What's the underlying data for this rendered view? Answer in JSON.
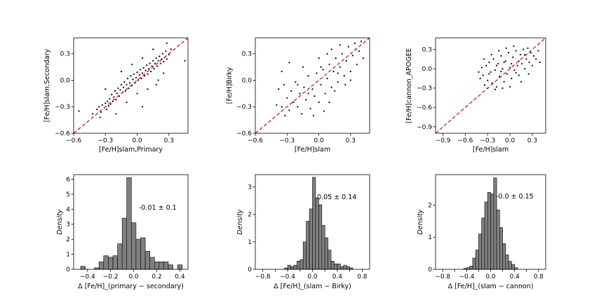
{
  "colors": {
    "scatter": "#000000",
    "diagonal": "#d62728",
    "bar_fill": "#808080",
    "bar_edge": "#000000"
  },
  "chart_data": [
    {
      "type": "scatter",
      "xlabel": "[Fe/H]slam,Primary",
      "ylabel": "[Fe/H]slam,Secondary",
      "xlim": [
        -0.6,
        0.48
      ],
      "ylim": [
        -0.6,
        0.48
      ],
      "xticks": [
        -0.6,
        -0.3,
        0.0,
        0.3
      ],
      "xtick_labels": [
        "−0.6",
        "−0.3",
        "0.0",
        "0.3"
      ],
      "yticks": [
        -0.6,
        -0.3,
        0.0,
        0.3
      ],
      "ytick_labels": [
        "−0.6",
        "−0.3",
        "0.0",
        "0.3"
      ],
      "reference_line": "y = x (dashed)",
      "points": [
        [
          -0.55,
          -0.35
        ],
        [
          -0.42,
          -0.38
        ],
        [
          -0.38,
          -0.33
        ],
        [
          -0.36,
          -0.3
        ],
        [
          -0.34,
          -0.36
        ],
        [
          -0.33,
          -0.28
        ],
        [
          -0.31,
          -0.31
        ],
        [
          -0.3,
          -0.26
        ],
        [
          -0.29,
          -0.33
        ],
        [
          -0.28,
          -0.24
        ],
        [
          -0.27,
          -0.29
        ],
        [
          -0.26,
          -0.21
        ],
        [
          -0.25,
          -0.27
        ],
        [
          -0.24,
          -0.16
        ],
        [
          -0.23,
          -0.24
        ],
        [
          -0.22,
          -0.19
        ],
        [
          -0.21,
          -0.12
        ],
        [
          -0.2,
          -0.22
        ],
        [
          -0.19,
          -0.15
        ],
        [
          -0.18,
          -0.09
        ],
        [
          -0.17,
          -0.18
        ],
        [
          -0.16,
          -0.11
        ],
        [
          -0.15,
          -0.05
        ],
        [
          -0.14,
          -0.14
        ],
        [
          -0.13,
          -0.08
        ],
        [
          -0.12,
          -0.02
        ],
        [
          -0.11,
          -0.12
        ],
        [
          -0.1,
          -0.05
        ],
        [
          -0.09,
          0.02
        ],
        [
          -0.08,
          -0.09
        ],
        [
          -0.07,
          -0.03
        ],
        [
          -0.06,
          0.05
        ],
        [
          -0.05,
          -0.06
        ],
        [
          -0.04,
          0.01
        ],
        [
          -0.03,
          0.07
        ],
        [
          -0.02,
          -0.03
        ],
        [
          -0.01,
          0.03
        ],
        [
          0.0,
          0.09
        ],
        [
          0.01,
          0.0
        ],
        [
          0.02,
          0.06
        ],
        [
          0.03,
          0.12
        ],
        [
          0.04,
          0.02
        ],
        [
          0.05,
          0.08
        ],
        [
          0.06,
          0.14
        ],
        [
          0.07,
          0.05
        ],
        [
          0.08,
          0.11
        ],
        [
          0.09,
          0.17
        ],
        [
          0.1,
          0.07
        ],
        [
          0.11,
          0.13
        ],
        [
          0.12,
          0.19
        ],
        [
          0.13,
          0.1
        ],
        [
          0.14,
          0.16
        ],
        [
          0.15,
          0.22
        ],
        [
          0.16,
          0.13
        ],
        [
          0.17,
          0.19
        ],
        [
          0.18,
          0.25
        ],
        [
          0.19,
          0.16
        ],
        [
          0.2,
          0.22
        ],
        [
          0.21,
          0.27
        ],
        [
          0.22,
          0.19
        ],
        [
          0.23,
          0.24
        ],
        [
          0.24,
          0.3
        ],
        [
          0.25,
          0.21
        ],
        [
          0.26,
          0.26
        ],
        [
          0.27,
          0.33
        ],
        [
          0.28,
          0.24
        ],
        [
          0.3,
          0.29
        ],
        [
          0.32,
          0.35
        ],
        [
          0.45,
          0.22
        ],
        [
          -0.2,
          -0.38
        ],
        [
          -0.1,
          -0.25
        ],
        [
          0.0,
          -0.15
        ],
        [
          0.05,
          -0.3
        ],
        [
          0.1,
          -0.1
        ],
        [
          0.2,
          0.0
        ],
        [
          0.25,
          0.08
        ],
        [
          -0.3,
          -0.1
        ],
        [
          -0.15,
          0.1
        ],
        [
          -0.05,
          0.18
        ],
        [
          0.05,
          0.25
        ],
        [
          0.15,
          0.35
        ],
        [
          0.28,
          0.42
        ],
        [
          -0.35,
          -0.42
        ],
        [
          0.18,
          -0.05
        ]
      ]
    },
    {
      "type": "scatter",
      "xlabel": "[Fe/H]slam",
      "ylabel": "[Fe/H]Birky",
      "xlim": [
        -0.6,
        0.48
      ],
      "ylim": [
        -0.6,
        0.48
      ],
      "xticks": [
        -0.6,
        -0.3,
        0.0,
        0.3
      ],
      "xtick_labels": [
        "−0.6",
        "−0.3",
        "0.0",
        "0.3"
      ],
      "yticks": [
        -0.6,
        -0.3,
        0.0,
        0.3
      ],
      "ytick_labels": [
        "−0.6",
        "−0.3",
        "0.0",
        "0.3"
      ],
      "reference_line": "y = x (dashed)",
      "points": [
        [
          -0.38,
          -0.1
        ],
        [
          -0.35,
          -0.3
        ],
        [
          -0.33,
          -0.05
        ],
        [
          -0.3,
          -0.2
        ],
        [
          -0.28,
          -0.34
        ],
        [
          -0.26,
          -0.12
        ],
        [
          -0.24,
          -0.25
        ],
        [
          -0.22,
          -0.02
        ],
        [
          -0.2,
          -0.3
        ],
        [
          -0.18,
          -0.15
        ],
        [
          -0.16,
          -0.38
        ],
        [
          -0.14,
          -0.08
        ],
        [
          -0.12,
          -0.22
        ],
        [
          -0.1,
          0.05
        ],
        [
          -0.08,
          -0.32
        ],
        [
          -0.06,
          -0.1
        ],
        [
          -0.04,
          -0.18
        ],
        [
          -0.02,
          0.08
        ],
        [
          0.0,
          -0.25
        ],
        [
          0.02,
          -0.05
        ],
        [
          0.04,
          0.12
        ],
        [
          0.06,
          -0.15
        ],
        [
          0.08,
          0.02
        ],
        [
          0.1,
          0.18
        ],
        [
          0.12,
          -0.08
        ],
        [
          0.14,
          0.1
        ],
        [
          0.16,
          0.25
        ],
        [
          0.18,
          -0.02
        ],
        [
          0.2,
          0.15
        ],
        [
          0.22,
          0.3
        ],
        [
          0.24,
          0.05
        ],
        [
          0.26,
          0.22
        ],
        [
          0.28,
          0.38
        ],
        [
          0.3,
          0.1
        ],
        [
          0.32,
          0.28
        ],
        [
          0.34,
          0.42
        ],
        [
          0.36,
          0.18
        ],
        [
          0.38,
          0.33
        ],
        [
          0.4,
          0.44
        ],
        [
          -0.35,
          0.1
        ],
        [
          -0.28,
          0.2
        ],
        [
          -0.05,
          -0.4
        ],
        [
          0.05,
          -0.35
        ],
        [
          0.1,
          -0.25
        ],
        [
          0.15,
          -0.12
        ],
        [
          0.25,
          -0.05
        ],
        [
          0.3,
          0.0
        ],
        [
          -0.15,
          0.15
        ],
        [
          0.0,
          0.25
        ],
        [
          0.08,
          0.3
        ],
        [
          -0.4,
          -0.28
        ],
        [
          -0.32,
          -0.4
        ],
        [
          0.12,
          0.35
        ],
        [
          0.2,
          0.4
        ],
        [
          0.42,
          0.25
        ],
        [
          -0.2,
          -0.05
        ],
        [
          -0.1,
          -0.15
        ],
        [
          0.02,
          0.15
        ],
        [
          0.18,
          0.08
        ],
        [
          0.35,
          0.35
        ]
      ]
    },
    {
      "type": "scatter",
      "xlabel": "[Fe/H]slam",
      "ylabel": "[Fe/H]cannon_APOGEE",
      "xlim": [
        -1.0,
        0.48
      ],
      "ylim": [
        -1.0,
        0.48
      ],
      "xticks": [
        -0.9,
        -0.6,
        -0.3,
        0.0,
        0.3
      ],
      "xtick_labels": [
        "−0.9",
        "−0.6",
        "−0.3",
        "0.0",
        "0.3"
      ],
      "yticks": [
        -0.9,
        -0.6,
        -0.3,
        0.0,
        0.3
      ],
      "ytick_labels": [
        "−0.9",
        "−0.6",
        "−0.3",
        "0.0",
        "0.3"
      ],
      "reference_line": "y = x (dashed)",
      "points": [
        [
          -0.4,
          -0.15
        ],
        [
          -0.38,
          0.02
        ],
        [
          -0.36,
          -0.1
        ],
        [
          -0.34,
          -0.25
        ],
        [
          -0.32,
          0.05
        ],
        [
          -0.3,
          -0.18
        ],
        [
          -0.28,
          0.1
        ],
        [
          -0.26,
          -0.05
        ],
        [
          -0.24,
          -0.22
        ],
        [
          -0.22,
          0.15
        ],
        [
          -0.2,
          -0.02
        ],
        [
          -0.18,
          -0.28
        ],
        [
          -0.16,
          0.08
        ],
        [
          -0.14,
          -0.12
        ],
        [
          -0.12,
          0.2
        ],
        [
          -0.1,
          0.0
        ],
        [
          -0.08,
          -0.2
        ],
        [
          -0.06,
          0.12
        ],
        [
          -0.04,
          -0.08
        ],
        [
          -0.02,
          0.25
        ],
        [
          0.0,
          0.02
        ],
        [
          0.02,
          -0.15
        ],
        [
          0.04,
          0.18
        ],
        [
          0.06,
          -0.02
        ],
        [
          0.08,
          0.28
        ],
        [
          0.1,
          0.05
        ],
        [
          0.12,
          -0.1
        ],
        [
          0.14,
          0.22
        ],
        [
          0.16,
          0.08
        ],
        [
          0.18,
          0.3
        ],
        [
          0.2,
          0.0
        ],
        [
          0.22,
          0.15
        ],
        [
          0.24,
          0.32
        ],
        [
          0.26,
          0.1
        ],
        [
          0.28,
          0.25
        ],
        [
          0.3,
          0.05
        ],
        [
          0.32,
          0.2
        ],
        [
          0.35,
          0.15
        ],
        [
          0.4,
          0.1
        ],
        [
          -0.35,
          0.15
        ],
        [
          -0.25,
          0.22
        ],
        [
          -0.15,
          0.28
        ],
        [
          -0.05,
          0.32
        ],
        [
          0.05,
          0.35
        ],
        [
          0.15,
          -0.2
        ],
        [
          0.25,
          -0.08
        ],
        [
          -0.3,
          -0.3
        ],
        [
          -0.2,
          -0.32
        ],
        [
          -0.1,
          -0.3
        ],
        [
          0.0,
          -0.28
        ],
        [
          -0.42,
          -0.05
        ],
        [
          0.38,
          0.28
        ],
        [
          -0.18,
          0.05
        ],
        [
          -0.08,
          0.1
        ],
        [
          0.12,
          0.12
        ],
        [
          -0.28,
          -0.08
        ],
        [
          0.02,
          0.08
        ],
        [
          0.2,
          0.22
        ],
        [
          -0.12,
          -0.04
        ],
        [
          0.08,
          -0.06
        ]
      ]
    },
    {
      "type": "bar",
      "xlabel": "Δ [Fe/H]_(primary − secondary)",
      "ylabel": "Density",
      "annotation": "-0.01 ± 0.1",
      "xlim": [
        -0.52,
        0.47
      ],
      "ylim": [
        0,
        6.3
      ],
      "xticks": [
        -0.4,
        -0.2,
        0.0,
        0.2,
        0.4
      ],
      "xtick_labels": [
        "−0.4",
        "−0.2",
        "0.0",
        "0.2",
        "0.4"
      ],
      "yticks": [
        0,
        1,
        2,
        3,
        4,
        5,
        6
      ],
      "ytick_labels": [
        "0",
        "1",
        "2",
        "3",
        "4",
        "5",
        "6"
      ],
      "bin_edges": [
        -0.46,
        -0.42,
        -0.38,
        -0.34,
        -0.3,
        -0.26,
        -0.22,
        -0.18,
        -0.14,
        -0.1,
        -0.06,
        -0.02,
        0.02,
        0.06,
        0.1,
        0.14,
        0.18,
        0.22,
        0.26,
        0.3,
        0.34,
        0.38,
        0.42
      ],
      "values": [
        0.2,
        0.0,
        0.0,
        0.1,
        0.5,
        0.9,
        0.8,
        0.9,
        1.7,
        3.4,
        6.1,
        3.1,
        2.0,
        2.1,
        1.2,
        0.8,
        0.5,
        0.5,
        0.5,
        0.3,
        0.0,
        0.3
      ]
    },
    {
      "type": "bar",
      "xlabel": "Δ [Fe/H]_(slam − Birky)",
      "ylabel": "Density",
      "annotation": "0.05 ± 0.14",
      "xlim": [
        -0.92,
        0.92
      ],
      "ylim": [
        0,
        3.45
      ],
      "xticks": [
        -0.8,
        -0.6,
        -0.4,
        -0.2,
        0.0,
        0.2,
        0.4,
        0.6,
        0.8
      ],
      "xtick_labels": [
        "−0.8",
        "",
        "−0.4",
        "",
        "0.0",
        "",
        "0.4",
        "",
        "0.8"
      ],
      "yticks": [
        0,
        1,
        2,
        3
      ],
      "ytick_labels": [
        "0",
        "1",
        "2",
        "3"
      ],
      "bin_edges": [
        -0.45,
        -0.4,
        -0.35,
        -0.3,
        -0.25,
        -0.2,
        -0.15,
        -0.1,
        -0.05,
        0.0,
        0.05,
        0.1,
        0.15,
        0.2,
        0.25,
        0.3,
        0.35,
        0.4,
        0.45,
        0.5,
        0.55,
        0.6,
        0.65
      ],
      "values": [
        0.05,
        0.15,
        0.1,
        0.15,
        0.3,
        0.35,
        1.0,
        1.75,
        2.2,
        3.35,
        2.6,
        2.35,
        1.6,
        1.15,
        0.7,
        0.3,
        0.2,
        0.2,
        0.1,
        0.15,
        0.1,
        0.05
      ]
    },
    {
      "type": "bar",
      "xlabel": "Δ [Fe/H]_(slam − cannon)",
      "ylabel": "Density",
      "annotation": "-0.0 ± 0.15",
      "xlim": [
        -0.92,
        0.92
      ],
      "ylim": [
        0,
        2.95
      ],
      "xticks": [
        -0.8,
        -0.6,
        -0.4,
        -0.2,
        0.0,
        0.2,
        0.4,
        0.6,
        0.8
      ],
      "xtick_labels": [
        "−0.8",
        "",
        "−0.4",
        "",
        "0.0",
        "",
        "0.4",
        "",
        "0.8"
      ],
      "yticks": [
        0,
        1,
        2
      ],
      "ytick_labels": [
        "0",
        "1",
        "2"
      ],
      "bin_edges": [
        -0.45,
        -0.4,
        -0.35,
        -0.3,
        -0.25,
        -0.2,
        -0.15,
        -0.1,
        -0.05,
        0.0,
        0.05,
        0.1,
        0.15,
        0.2,
        0.25,
        0.3,
        0.35,
        0.4,
        0.45
      ],
      "values": [
        0.03,
        0.05,
        0.1,
        0.35,
        0.6,
        1.1,
        1.6,
        2.1,
        2.4,
        2.35,
        2.85,
        1.85,
        1.3,
        0.8,
        0.45,
        0.25,
        0.15,
        0.05
      ]
    }
  ]
}
